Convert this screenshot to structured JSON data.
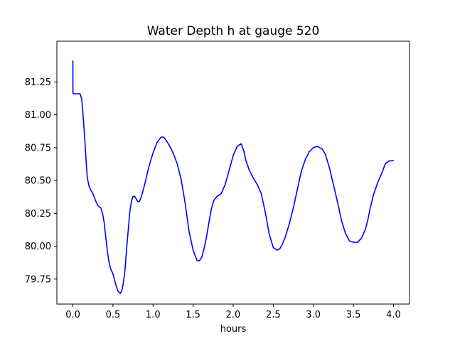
{
  "chart_data": {
    "type": "line",
    "title": "Water Depth h at gauge 520",
    "xlabel": "hours",
    "ylabel": "",
    "xlim": [
      -0.2,
      4.2
    ],
    "ylim": [
      79.56,
      81.56
    ],
    "xticks": [
      0.0,
      0.5,
      1.0,
      1.5,
      2.0,
      2.5,
      3.0,
      3.5,
      4.0
    ],
    "xtick_labels": [
      "0.0",
      "0.5",
      "1.0",
      "1.5",
      "2.0",
      "2.5",
      "3.0",
      "3.5",
      "4.0"
    ],
    "yticks": [
      79.75,
      80.0,
      80.25,
      80.5,
      80.75,
      81.0,
      81.25
    ],
    "ytick_labels": [
      "79.75",
      "80.00",
      "80.25",
      "80.50",
      "80.75",
      "81.00",
      "81.25"
    ],
    "grid": false,
    "series": [
      {
        "color": "#0000ff",
        "x": [
          0.0,
          0.0,
          0.01,
          0.05,
          0.09,
          0.11,
          0.13,
          0.15,
          0.17,
          0.18,
          0.2,
          0.22,
          0.25,
          0.28,
          0.31,
          0.35,
          0.37,
          0.39,
          0.41,
          0.43,
          0.45,
          0.47,
          0.5,
          0.53,
          0.56,
          0.59,
          0.61,
          0.63,
          0.65,
          0.67,
          0.69,
          0.71,
          0.73,
          0.75,
          0.77,
          0.79,
          0.81,
          0.83,
          0.85,
          0.87,
          0.9,
          0.93,
          0.96,
          1.0,
          1.05,
          1.1,
          1.13,
          1.16,
          1.2,
          1.25,
          1.3,
          1.35,
          1.4,
          1.45,
          1.5,
          1.55,
          1.58,
          1.61,
          1.64,
          1.67,
          1.7,
          1.73,
          1.76,
          1.8,
          1.85,
          1.9,
          1.95,
          2.0,
          2.05,
          2.1,
          2.13,
          2.16,
          2.2,
          2.25,
          2.3,
          2.35,
          2.4,
          2.45,
          2.5,
          2.55,
          2.58,
          2.61,
          2.65,
          2.7,
          2.75,
          2.8,
          2.85,
          2.9,
          2.95,
          3.0,
          3.05,
          3.08,
          3.11,
          3.15,
          3.2,
          3.25,
          3.3,
          3.35,
          3.4,
          3.45,
          3.5,
          3.55,
          3.6,
          3.65,
          3.68,
          3.71,
          3.75,
          3.8,
          3.85,
          3.9,
          3.95,
          4.0
        ],
        "y": [
          81.41,
          81.17,
          81.16,
          81.16,
          81.16,
          81.12,
          80.97,
          80.8,
          80.6,
          80.52,
          80.46,
          80.43,
          80.4,
          80.35,
          80.31,
          80.29,
          80.25,
          80.18,
          80.07,
          79.96,
          79.88,
          79.83,
          79.79,
          79.72,
          79.66,
          79.64,
          79.66,
          79.72,
          79.82,
          79.98,
          80.12,
          80.26,
          80.34,
          80.38,
          80.38,
          80.36,
          80.34,
          80.34,
          80.37,
          80.41,
          80.48,
          80.56,
          80.63,
          80.71,
          80.79,
          80.83,
          80.83,
          80.81,
          80.77,
          80.71,
          80.63,
          80.51,
          80.33,
          80.11,
          79.97,
          79.89,
          79.89,
          79.92,
          79.99,
          80.08,
          80.19,
          80.29,
          80.35,
          80.38,
          80.4,
          80.47,
          80.58,
          80.69,
          80.76,
          80.78,
          80.73,
          80.65,
          80.58,
          80.52,
          80.47,
          80.4,
          80.26,
          80.09,
          79.99,
          79.97,
          79.98,
          80.01,
          80.07,
          80.17,
          80.29,
          80.43,
          80.57,
          80.66,
          80.72,
          80.75,
          80.76,
          80.75,
          80.74,
          80.7,
          80.6,
          80.47,
          80.34,
          80.2,
          80.1,
          80.04,
          80.03,
          80.03,
          80.06,
          80.13,
          80.2,
          80.29,
          80.39,
          80.48,
          80.55,
          80.63,
          80.65,
          80.65
        ]
      }
    ]
  }
}
